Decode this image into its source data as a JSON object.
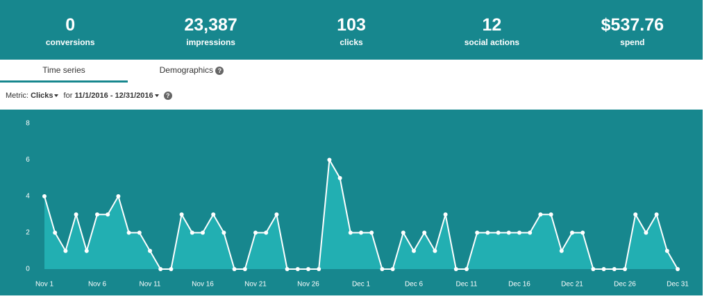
{
  "stats": [
    {
      "value": "0",
      "label": "conversions"
    },
    {
      "value": "23,387",
      "label": "impressions"
    },
    {
      "value": "103",
      "label": "clicks"
    },
    {
      "value": "12",
      "label": "social actions"
    },
    {
      "value": "$537.76",
      "label": "spend"
    }
  ],
  "tabs": [
    {
      "label": "Time series"
    },
    {
      "label": "Demographics",
      "help": "?"
    }
  ],
  "metric": {
    "label": "Metric:",
    "value": "Clicks",
    "for": "for",
    "range": "11/1/2016 - 12/31/2016",
    "help": "?"
  },
  "chart_data": {
    "type": "area",
    "categories": [
      "Nov 1",
      null,
      null,
      null,
      null,
      "Nov 6",
      null,
      null,
      null,
      null,
      "Nov 11",
      null,
      null,
      null,
      null,
      "Nov 16",
      null,
      null,
      null,
      null,
      "Nov 21",
      null,
      null,
      null,
      null,
      "Nov 26",
      null,
      null,
      null,
      null,
      "Dec 1",
      null,
      null,
      null,
      null,
      "Dec 6",
      null,
      null,
      null,
      null,
      "Dec 11",
      null,
      null,
      null,
      null,
      "Dec 16",
      null,
      null,
      null,
      null,
      "Dec 21",
      null,
      null,
      null,
      null,
      "Dec 26",
      null,
      null,
      null,
      null,
      "Dec 31"
    ],
    "values": [
      4,
      2,
      1,
      3,
      1,
      3,
      3,
      4,
      2,
      2,
      1,
      0,
      0,
      3,
      2,
      2,
      3,
      2,
      0,
      0,
      2,
      2,
      3,
      0,
      0,
      0,
      0,
      6,
      5,
      2,
      2,
      2,
      0,
      0,
      2,
      1,
      2,
      1,
      3,
      0,
      0,
      2,
      2,
      2,
      2,
      2,
      2,
      3,
      3,
      1,
      2,
      2,
      0,
      0,
      0,
      0,
      3,
      2,
      3,
      1,
      0
    ],
    "color": "#ffffff",
    "fill_color": "#22afb2",
    "ylim": [
      0,
      8
    ],
    "yticks": [
      0,
      2,
      4,
      6,
      8
    ]
  }
}
